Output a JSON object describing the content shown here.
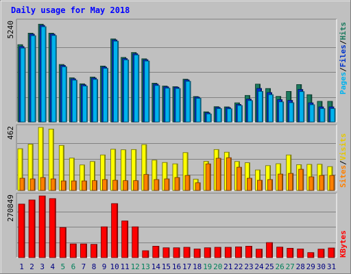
{
  "chart_data": [
    {
      "type": "bar",
      "title": "Daily usage for May 2018",
      "ylabel_max": "5240",
      "categories": [
        "1",
        "2",
        "3",
        "4",
        "5",
        "6",
        "7",
        "8",
        "9",
        "10",
        "11",
        "12",
        "13",
        "14",
        "15",
        "16",
        "17",
        "18",
        "19",
        "20",
        "21",
        "22",
        "23",
        "24",
        "25",
        "26",
        "27",
        "28",
        "29",
        "30",
        "31"
      ],
      "weekend_days": [
        "5",
        "6",
        "12",
        "13",
        "19",
        "20",
        "26",
        "27"
      ],
      "ylim": [
        0,
        5240
      ],
      "grid": true,
      "series": [
        {
          "name": "Hits",
          "color": "#1a7a5e",
          "values": [
            4050,
            4650,
            5120,
            4650,
            3010,
            2310,
            2000,
            2350,
            2930,
            4350,
            3380,
            3640,
            3310,
            2030,
            1880,
            1850,
            2240,
            1330,
            530,
            800,
            790,
            1000,
            1390,
            1980,
            1750,
            1340,
            1600,
            1960,
            1430,
            1080,
            1080
          ]
        },
        {
          "name": "Files",
          "color": "#0033cc",
          "values": [
            3950,
            4600,
            5060,
            4600,
            2960,
            2260,
            1950,
            2300,
            2880,
            4300,
            3320,
            3580,
            3260,
            1980,
            1840,
            1820,
            2200,
            1300,
            480,
            760,
            750,
            920,
            1200,
            1760,
            1540,
            1170,
            1130,
            1700,
            1000,
            790,
            790
          ]
        },
        {
          "name": "Pages",
          "color": "#00b2ee",
          "values": [
            3870,
            4520,
            4990,
            4530,
            2890,
            2190,
            1880,
            2230,
            2810,
            4230,
            3250,
            3510,
            3190,
            1910,
            1770,
            1750,
            2130,
            1240,
            420,
            700,
            690,
            860,
            1120,
            1600,
            1430,
            1050,
            1010,
            1590,
            900,
            700,
            700
          ]
        }
      ]
    },
    {
      "type": "bar",
      "ylabel_max": "462",
      "categories": [
        "1",
        "2",
        "3",
        "4",
        "5",
        "6",
        "7",
        "8",
        "9",
        "10",
        "11",
        "12",
        "13",
        "14",
        "15",
        "16",
        "17",
        "18",
        "19",
        "20",
        "21",
        "22",
        "23",
        "24",
        "25",
        "26",
        "27",
        "28",
        "29",
        "30",
        "31"
      ],
      "ylim": [
        0,
        462
      ],
      "grid": true,
      "series": [
        {
          "name": "Visits",
          "color": "#ffff00",
          "values": [
            306,
            339,
            462,
            450,
            330,
            237,
            187,
            212,
            260,
            302,
            298,
            300,
            336,
            222,
            205,
            195,
            277,
            82,
            213,
            300,
            280,
            212,
            203,
            150,
            182,
            196,
            260,
            189,
            191,
            192,
            175
          ]
        },
        {
          "name": "Sites",
          "color": "#ff8000",
          "values": [
            90,
            85,
            95,
            85,
            70,
            70,
            70,
            72,
            80,
            75,
            72,
            72,
            117,
            80,
            85,
            95,
            110,
            56,
            195,
            236,
            240,
            170,
            90,
            75,
            80,
            120,
            125,
            155,
            100,
            110,
            110
          ]
        }
      ]
    },
    {
      "type": "bar",
      "ylabel_max": "270849",
      "categories": [
        "1",
        "2",
        "3",
        "4",
        "5",
        "6",
        "7",
        "8",
        "9",
        "10",
        "11",
        "12",
        "13",
        "14",
        "15",
        "16",
        "17",
        "18",
        "19",
        "20",
        "21",
        "22",
        "23",
        "24",
        "25",
        "26",
        "27",
        "28",
        "29",
        "30",
        "31"
      ],
      "ylim": [
        0,
        270849
      ],
      "grid": true,
      "series": [
        {
          "name": "KBytes",
          "color": "#ff0000",
          "values": [
            235000,
            253000,
            270849,
            259000,
            132000,
            60000,
            60000,
            58000,
            135000,
            237000,
            161000,
            135000,
            30000,
            50000,
            43000,
            43000,
            45000,
            38000,
            43000,
            45000,
            45000,
            47000,
            50000,
            37000,
            66000,
            46000,
            41000,
            38000,
            22000,
            37000,
            42000
          ]
        }
      ]
    }
  ],
  "legend_labels": {
    "top": [
      {
        "text": "Pages",
        "color": "#00b2ee"
      },
      {
        "text": "/",
        "color": "#000000"
      },
      {
        "text": "Files",
        "color": "#0033cc"
      },
      {
        "text": "/",
        "color": "#000000"
      },
      {
        "text": "Hits",
        "color": "#1a7a5e"
      }
    ],
    "middle": [
      {
        "text": "Sites",
        "color": "#ff8000"
      },
      {
        "text": "/",
        "color": "#000000"
      },
      {
        "text": "Visits",
        "color": "#e6c800"
      }
    ],
    "bottom": [
      {
        "text": "KBytes",
        "color": "#ff0000"
      }
    ]
  },
  "colors": {
    "background": "#c0c0c0",
    "plot_background": "#c0c0c0",
    "title": "#0000ff",
    "weekday_label": "#000080",
    "weekend_label": "#00805a"
  }
}
